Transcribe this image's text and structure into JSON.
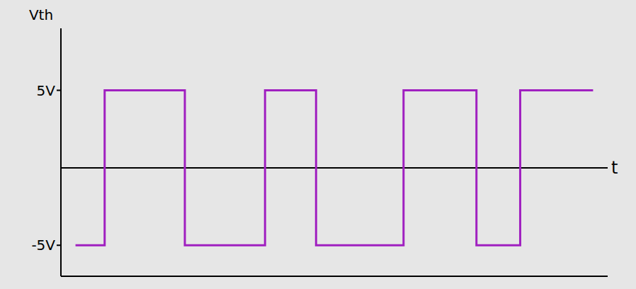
{
  "chart_data": {
    "type": "line",
    "x_label": "t",
    "y_label": "Vth",
    "x": [
      2,
      6,
      6,
      17,
      17,
      28,
      28,
      35,
      35,
      47,
      47,
      57,
      57,
      63,
      63,
      73
    ],
    "values": [
      -5,
      -5,
      5,
      5,
      -5,
      -5,
      5,
      5,
      -5,
      -5,
      5,
      5,
      -5,
      -5,
      5,
      5
    ],
    "color": "#a020c0",
    "xlim": [
      0,
      75
    ],
    "ylim": [
      -7,
      9
    ],
    "yticks": [
      {
        "value": 5,
        "label": "5V"
      },
      {
        "value": -5,
        "label": "-5V"
      }
    ],
    "xticks": [],
    "tick_labels": "y",
    "grid": false,
    "line_style": "solid",
    "marker": "none"
  }
}
